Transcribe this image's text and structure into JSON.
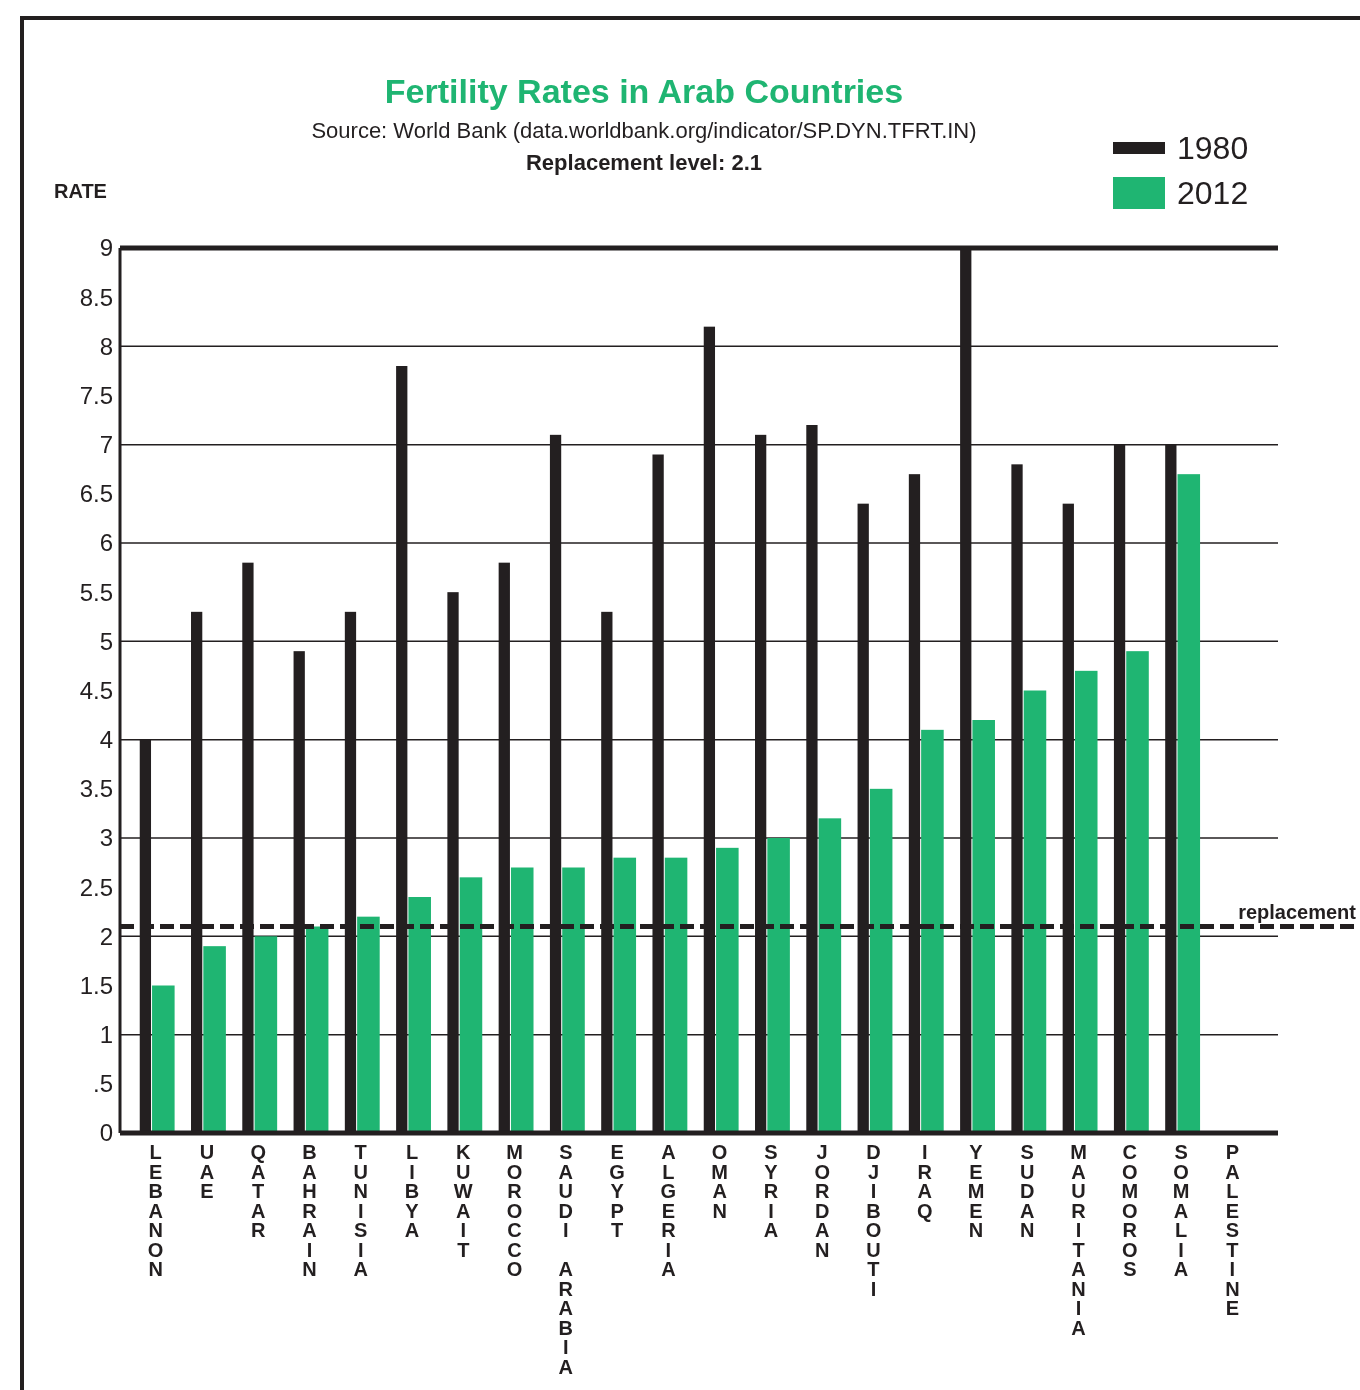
{
  "chart_data": {
    "type": "bar",
    "title": "Fertility Rates in Arab Countries",
    "subtitle": "Source: World Bank (data.worldbank.org/indicator/SP.DYN.TFRT.IN)",
    "annotations": [
      "Replacement level: 2.1"
    ],
    "ylabel": "RATE",
    "categories": [
      "LEBANON",
      "UAE",
      "QATAR",
      "BAHRAIN",
      "TUNISIA",
      "LIBYA",
      "KUWAIT",
      "MOROCCO",
      "SAUDI ARABIA",
      "EGYPT",
      "ALGERIA",
      "OMAN",
      "SYRIA",
      "JORDAN",
      "DJIBOUTI",
      "IRAQ",
      "YEMEN",
      "SUDAN",
      "MAURITANIA",
      "COMOROS",
      "SOMALIA",
      "PALESTINE"
    ],
    "series": [
      {
        "name": "1980",
        "color": "#231f20",
        "values": [
          4.0,
          5.3,
          5.8,
          4.9,
          5.3,
          7.8,
          5.5,
          5.8,
          7.1,
          5.3,
          6.9,
          8.2,
          7.1,
          7.2,
          6.4,
          6.7,
          9.0,
          6.8,
          6.4,
          7.0,
          7.0,
          null
        ]
      },
      {
        "name": "2012",
        "color": "#1fb572",
        "values": [
          1.5,
          1.9,
          2.0,
          2.1,
          2.2,
          2.4,
          2.6,
          2.7,
          2.7,
          2.8,
          2.8,
          2.9,
          3.0,
          3.2,
          3.5,
          4.1,
          4.2,
          4.5,
          4.7,
          4.9,
          6.7,
          null
        ]
      }
    ],
    "ylim": [
      0,
      9
    ],
    "yticks": [
      0,
      {
        "value": 0.5,
        "label": ".5"
      },
      1,
      1.5,
      2,
      2.5,
      3,
      3.5,
      4,
      4.5,
      5,
      5.5,
      6,
      6.5,
      7,
      7.5,
      8,
      8.5,
      9
    ],
    "grid": "y",
    "legend": "top right",
    "ref_lines": [
      {
        "axis": "y",
        "value": 2.1,
        "label": "replacement",
        "color": "#231f20",
        "line_style": "dashed"
      }
    ]
  }
}
